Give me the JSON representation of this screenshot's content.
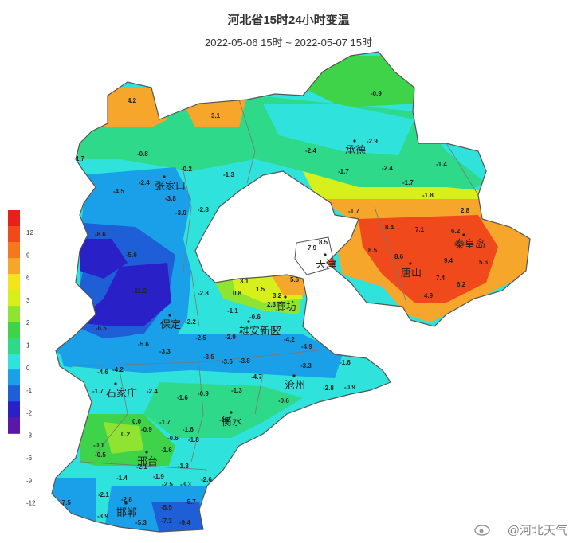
{
  "title": "河北省15时24小时变温",
  "subtitle": "2022-05-06 15时 ~ 2022-05-07 15时",
  "watermark": "@河北天气",
  "legend": {
    "ticks": [
      "12",
      "9",
      "6",
      "3",
      "2",
      "1",
      "0",
      "-1",
      "-2",
      "-3",
      "-6",
      "-9",
      "-12"
    ],
    "colors": [
      "#e8201a",
      "#f04a1c",
      "#f5781e",
      "#f6a62a",
      "#f4e41c",
      "#d7f01c",
      "#8fe431",
      "#3fd34a",
      "#2fd98a",
      "#2fe3dc",
      "#1aa0e8",
      "#1e5fd8",
      "#2a20c8",
      "#5a17a8"
    ]
  },
  "cities": [
    {
      "name": "张家口"
    },
    {
      "name": "承德"
    },
    {
      "name": "秦皇岛"
    },
    {
      "name": "唐山"
    },
    {
      "name": "廊坊"
    },
    {
      "name": "保定"
    },
    {
      "name": "雄安新区"
    },
    {
      "name": "沧州"
    },
    {
      "name": "石家庄"
    },
    {
      "name": "衡水"
    },
    {
      "name": "邢台"
    },
    {
      "name": "邯郸"
    },
    {
      "name": "天津"
    }
  ],
  "station_values": [
    {
      "v": "4.2"
    },
    {
      "v": "3.1"
    },
    {
      "v": "-0.9"
    },
    {
      "v": "-2.9"
    },
    {
      "v": "-2.4"
    },
    {
      "v": "-0.8"
    },
    {
      "v": "-0.2"
    },
    {
      "v": "-1.3"
    },
    {
      "v": "-1.7"
    },
    {
      "v": "-2.4"
    },
    {
      "v": "-1.4"
    },
    {
      "v": "-1.7"
    },
    {
      "v": "-1.8"
    },
    {
      "v": "-1.7"
    },
    {
      "v": "-4.5"
    },
    {
      "v": "-2.4"
    },
    {
      "v": "-3.8"
    },
    {
      "v": "-3.0"
    },
    {
      "v": "-2.8"
    },
    {
      "v": "1.7"
    },
    {
      "v": "2.8"
    },
    {
      "v": "8.4"
    },
    {
      "v": "7.1"
    },
    {
      "v": "6.2"
    },
    {
      "v": "7.9"
    },
    {
      "v": "8.5"
    },
    {
      "v": "8.5"
    },
    {
      "v": "8.6"
    },
    {
      "v": "9.4"
    },
    {
      "v": "5.6"
    },
    {
      "v": "7.4"
    },
    {
      "v": "6.2"
    },
    {
      "v": "4.9"
    },
    {
      "v": "-8.6"
    },
    {
      "v": "-5.6"
    },
    {
      "v": "-11.2"
    },
    {
      "v": "-6.5"
    },
    {
      "v": "3.1"
    },
    {
      "v": "0.8"
    },
    {
      "v": "1.5"
    },
    {
      "v": "5.6"
    },
    {
      "v": "3.2"
    },
    {
      "v": "2.3"
    },
    {
      "v": "-2.8"
    },
    {
      "v": "-1.1"
    },
    {
      "v": "-0.6"
    },
    {
      "v": "-1.7"
    },
    {
      "v": "-2.2"
    },
    {
      "v": "-2.5"
    },
    {
      "v": "-2.9"
    },
    {
      "v": "-4.2"
    },
    {
      "v": "-4.9"
    },
    {
      "v": "-5.6"
    },
    {
      "v": "-3.3"
    },
    {
      "v": "-3.5"
    },
    {
      "v": "-3.6"
    },
    {
      "v": "-3.8"
    },
    {
      "v": "-4.7"
    },
    {
      "v": "-3.3"
    },
    {
      "v": "-1.6"
    },
    {
      "v": "-4.6"
    },
    {
      "v": "-4.2"
    },
    {
      "v": "-1.7"
    },
    {
      "v": "-2.4"
    },
    {
      "v": "-1.6"
    },
    {
      "v": "-0.9"
    },
    {
      "v": "-1.3"
    },
    {
      "v": "-2.8"
    },
    {
      "v": "-0.9"
    },
    {
      "v": "-0.6"
    },
    {
      "v": "0.0"
    },
    {
      "v": "-1.7"
    },
    {
      "v": "0.2"
    },
    {
      "v": "-0.9"
    },
    {
      "v": "-0.6"
    },
    {
      "v": "-1.6"
    },
    {
      "v": "-1.2"
    },
    {
      "v": "-1.8"
    },
    {
      "v": "-0.1"
    },
    {
      "v": "-0.5"
    },
    {
      "v": "-1.6"
    },
    {
      "v": "-2.1"
    },
    {
      "v": "-1.3"
    },
    {
      "v": "-1.4"
    },
    {
      "v": "-1.9"
    },
    {
      "v": "-2.5"
    },
    {
      "v": "-3.3"
    },
    {
      "v": "-2.6"
    },
    {
      "v": "-2.1"
    },
    {
      "v": "-2.8"
    },
    {
      "v": "-5.5"
    },
    {
      "v": "-5.7"
    },
    {
      "v": "-7.5"
    },
    {
      "v": "-3.9"
    },
    {
      "v": "-5.3"
    },
    {
      "v": "-7.3"
    },
    {
      "v": "-9.4"
    }
  ]
}
